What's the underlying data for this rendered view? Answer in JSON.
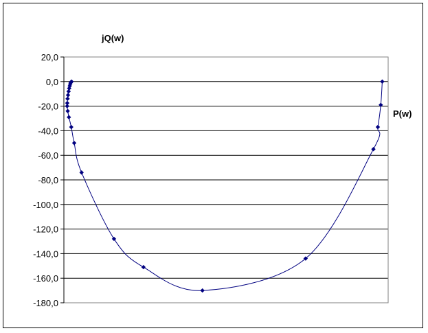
{
  "chart_data": {
    "type": "scatter",
    "title": "",
    "xlabel": "P(w)",
    "ylabel": "jQ(w)",
    "ylim": [
      -180,
      20
    ],
    "y_ticks": [
      20,
      0,
      -20,
      -40,
      -60,
      -80,
      -100,
      -120,
      -140,
      -160,
      -180
    ],
    "y_tick_labels": [
      "20,0",
      "0,0",
      "-20,0",
      "-40,0",
      "-60,0",
      "-80,0",
      "-100,0",
      "-120,0",
      "-140,0",
      "-160,0",
      "-180,0"
    ],
    "x_ticks_shown": false,
    "grid": "horizontal",
    "legend": "none",
    "series": [
      {
        "values_xy": [
          [
            0.6,
            0.0
          ],
          [
            0.45,
            -0.3
          ],
          [
            0.3,
            -1.0
          ],
          [
            0.15,
            -2.0
          ],
          [
            0.0,
            -3.5
          ],
          [
            -0.2,
            -5.5
          ],
          [
            -0.4,
            -8.0
          ],
          [
            -0.6,
            -11.0
          ],
          [
            -0.75,
            -14.0
          ],
          [
            -0.85,
            -17.5
          ],
          [
            -0.9,
            -20.0
          ],
          [
            -0.7,
            -24.0
          ],
          [
            -0.3,
            -29.0
          ],
          [
            0.5,
            -37.0
          ],
          [
            1.5,
            -50.0
          ],
          [
            4.0,
            -74.0
          ],
          [
            15.0,
            -128.0
          ],
          [
            25.0,
            -151.0
          ],
          [
            45.0,
            -170.0
          ],
          [
            80.0,
            -144.0
          ],
          [
            103.0,
            -55.0
          ],
          [
            104.5,
            -37.0
          ],
          [
            105.5,
            -19.0
          ],
          [
            106.0,
            0.0
          ]
        ]
      }
    ],
    "xlim": [
      -2,
      108
    ],
    "colors": {
      "series": "#000080",
      "grid": "#000000",
      "frame": "#000000"
    }
  }
}
